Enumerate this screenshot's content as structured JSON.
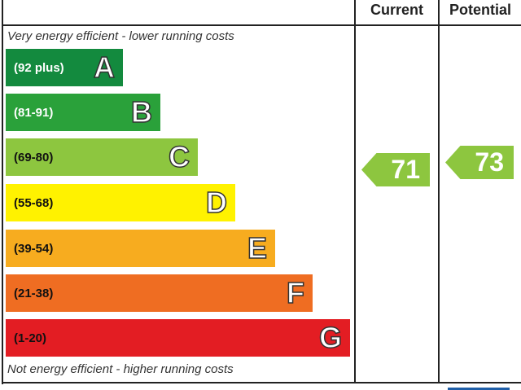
{
  "headers": {
    "current": "Current",
    "potential": "Potential"
  },
  "captions": {
    "top": "Very energy efficient - lower running costs",
    "bottom": "Not energy efficient - higher running costs"
  },
  "chart_data": {
    "type": "bar",
    "categories": [
      "A",
      "B",
      "C",
      "D",
      "E",
      "F",
      "G"
    ],
    "bands": [
      {
        "letter": "A",
        "range": "(92 plus)",
        "color": "#138a3e"
      },
      {
        "letter": "B",
        "range": "(81-91)",
        "color": "#2aa13a"
      },
      {
        "letter": "C",
        "range": "(69-80)",
        "color": "#8dc63f"
      },
      {
        "letter": "D",
        "range": "(55-68)",
        "color": "#fff200"
      },
      {
        "letter": "E",
        "range": "(39-54)",
        "color": "#f7ac1f"
      },
      {
        "letter": "F",
        "range": "(21-38)",
        "color": "#ef6d22"
      },
      {
        "letter": "G",
        "range": "(1-20)",
        "color": "#e31d23"
      }
    ],
    "current": {
      "value": "71",
      "band": "C",
      "color": "#8dc63f"
    },
    "potential": {
      "value": "73",
      "band": "C",
      "color": "#8dc63f"
    }
  }
}
